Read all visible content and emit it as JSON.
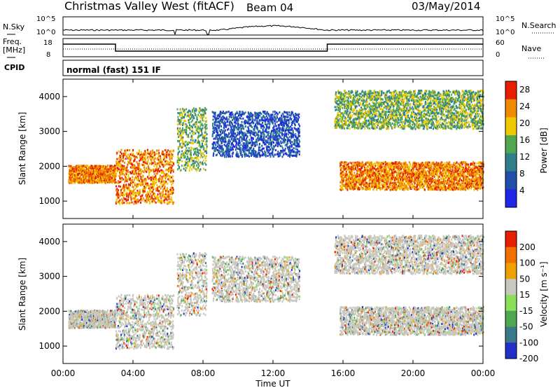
{
  "header": {
    "title": "Christmas Valley West (fitACF)",
    "beam": "Beam 04",
    "date": "03/May/2014"
  },
  "labels": {
    "nsky": "N.Sky",
    "nsearch": "N.Search",
    "freq": "Freq.",
    "freq_unit": "[MHz]",
    "nave": "Nave",
    "cpid": "CPID",
    "cpid_value": "normal (fast) 151 IF",
    "nsky_ticks": [
      "10^5",
      "10^0"
    ],
    "freq_ticks": [
      "18",
      "8"
    ],
    "nave_ticks": [
      "60",
      "0"
    ],
    "nsearch_ticks": [
      "10^5",
      "10^0"
    ]
  },
  "chart_data": [
    {
      "type": "heatmap",
      "name": "power",
      "ylabel": "Slant Range [km]",
      "xlabel": "Time UT",
      "xticks": [
        "00:00",
        "04:00",
        "08:00",
        "12:00",
        "16:00",
        "20:00",
        "00:00"
      ],
      "yticks": [
        1000,
        2000,
        3000,
        4000
      ],
      "ylim": [
        500,
        4500
      ],
      "xlim_hours": [
        0,
        24
      ],
      "colorbar": {
        "label": "Power [dB]",
        "ticks": [
          4,
          8,
          12,
          16,
          20,
          24,
          28
        ],
        "range": [
          0,
          30
        ],
        "colors": [
          "#1f26e8",
          "#1f4fa8",
          "#2f7f8f",
          "#4fa84f",
          "#f0c800",
          "#f08a00",
          "#e81e00"
        ]
      },
      "bands": [
        {
          "t0": 0.3,
          "t1": 3.0,
          "r0": 1550,
          "r1": 2050,
          "level": "high"
        },
        {
          "t0": 3.0,
          "t1": 6.3,
          "r0": 950,
          "r1": 2500,
          "level": "high"
        },
        {
          "t0": 6.5,
          "t1": 8.2,
          "r0": 1900,
          "r1": 3700,
          "level": "mid"
        },
        {
          "t0": 8.5,
          "t1": 13.5,
          "r0": 2300,
          "r1": 3600,
          "level": "low"
        },
        {
          "t0": 15.8,
          "t1": 24,
          "r0": 1350,
          "r1": 2150,
          "level": "high"
        },
        {
          "t0": 15.5,
          "t1": 24,
          "r0": 3100,
          "r1": 4200,
          "level": "mid"
        }
      ]
    },
    {
      "type": "heatmap",
      "name": "velocity",
      "ylabel": "Slant Range [km]",
      "xlabel": "Time UT",
      "xticks": [
        "00:00",
        "04:00",
        "08:00",
        "12:00",
        "16:00",
        "20:00",
        "00:00"
      ],
      "yticks": [
        1000,
        2000,
        3000,
        4000
      ],
      "ylim": [
        500,
        4500
      ],
      "xlim_hours": [
        0,
        24
      ],
      "colorbar": {
        "label": "Velocity [m s⁻¹]",
        "ticks": [
          200,
          100,
          50,
          15,
          -15,
          -50,
          -100,
          -200
        ],
        "colors": [
          "#2030c8",
          "#3a7a8a",
          "#4fa84f",
          "#8be05a",
          "#c8c8c0",
          "#f0a000",
          "#f07000",
          "#e81e00"
        ]
      }
    }
  ]
}
